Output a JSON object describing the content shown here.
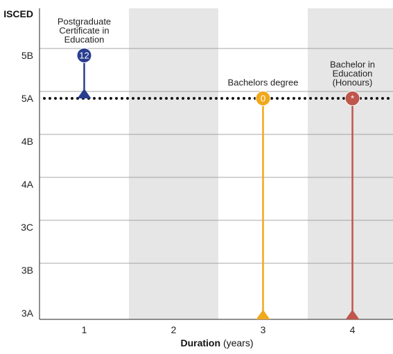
{
  "chart_data": {
    "type": "scatter",
    "y_axis": {
      "title": "ISCED",
      "levels": [
        "3A",
        "3B",
        "3C",
        "4A",
        "4B",
        "5A",
        "5B"
      ]
    },
    "x_axis": {
      "title": "Duration",
      "unit": "(years)",
      "ticks": [
        1,
        2,
        3,
        4
      ],
      "shaded_columns": [
        2,
        4
      ]
    },
    "reference_line": {
      "level": "5A",
      "style": "dotted"
    },
    "grid": true,
    "points": [
      {
        "label_lines": [
          "Postgraduate",
          "Certificate in",
          "Education"
        ],
        "marker_text": "12",
        "duration": 1,
        "entry_level": "5A",
        "level": "5B",
        "color": "#2a3d8f"
      },
      {
        "label_lines": [
          "Bachelors degree"
        ],
        "marker_text": "0",
        "duration": 3,
        "entry_level": "3A",
        "level": "5A",
        "color": "#f0a81c"
      },
      {
        "label_lines": [
          "Bachelor in",
          "Education",
          "(Honours)"
        ],
        "marker_text": "*",
        "duration": 4,
        "entry_level": "3A",
        "level": "5A",
        "color": "#c0574c"
      }
    ]
  }
}
